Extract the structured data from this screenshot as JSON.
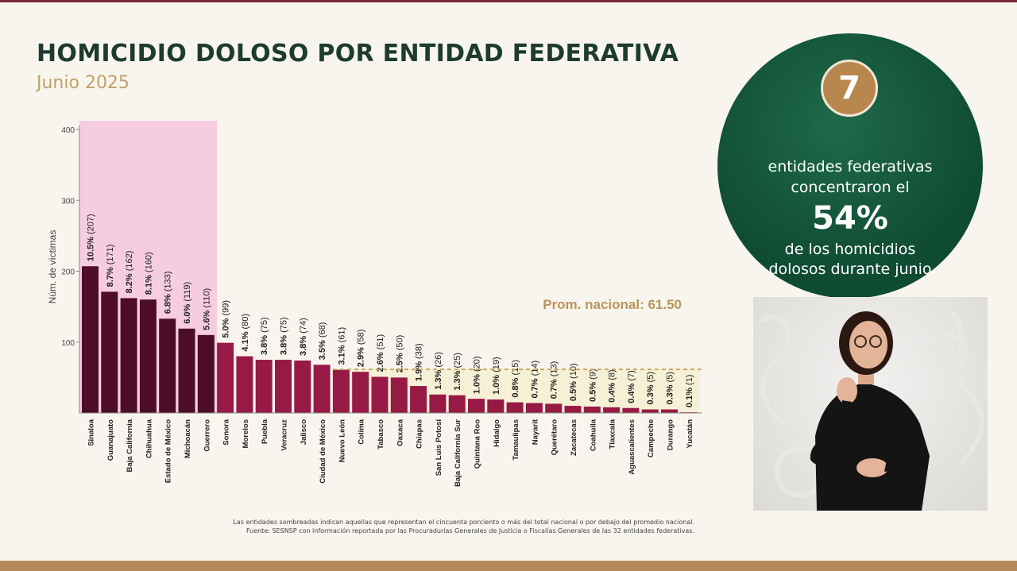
{
  "header": {
    "title": "HOMICIDIO DOLOSO POR ENTIDAD FEDERATIVA",
    "subtitle": "Junio 2025"
  },
  "chart_data": {
    "type": "bar",
    "ylabel": "Núm. de víctimas",
    "ylim": [
      0,
      400
    ],
    "yticks": [
      100,
      200,
      300,
      400
    ],
    "categories": [
      "Sinaloa",
      "Guanajuato",
      "Baja California",
      "Chihuahua",
      "Estado de México",
      "Michoacán",
      "Guerrero",
      "Sonora",
      "Morelos",
      "Puebla",
      "Veracruz",
      "Jalisco",
      "Ciudad de México",
      "Nuevo León",
      "Colima",
      "Tabasco",
      "Oaxaca",
      "Chiapas",
      "San Luis Potosí",
      "Baja California Sur",
      "Quintana Roo",
      "Hidalgo",
      "Tamaulipas",
      "Nayarit",
      "Querétaro",
      "Zacatecas",
      "Coahuila",
      "Tlaxcala",
      "Aguascalientes",
      "Campeche",
      "Durango",
      "Yucatán"
    ],
    "values": [
      207,
      171,
      162,
      160,
      133,
      119,
      110,
      99,
      80,
      75,
      75,
      74,
      68,
      61,
      58,
      51,
      50,
      38,
      26,
      25,
      20,
      19,
      15,
      14,
      13,
      10,
      9,
      8,
      7,
      5,
      5,
      1
    ],
    "percent_labels": [
      "10.5%",
      "8.7%",
      "8.2%",
      "8.1%",
      "6.8%",
      "6.0%",
      "5.6%",
      "5.0%",
      "4.1%",
      "3.8%",
      "3.8%",
      "3.8%",
      "3.5%",
      "3.1%",
      "2.9%",
      "2.6%",
      "2.5%",
      "1.9%",
      "1.3%",
      "1.3%",
      "1.0%",
      "1.0%",
      "0.8%",
      "0.7%",
      "0.7%",
      "0.5%",
      "0.5%",
      "0.4%",
      "0.4%",
      "0.3%",
      "0.3%",
      "0.1%"
    ],
    "count_labels": [
      "(207)",
      "(171)",
      "(162)",
      "(160)",
      "(133)",
      "(119)",
      "(110)",
      "(99)",
      "(80)",
      "(75)",
      "(75)",
      "(74)",
      "(68)",
      "(61)",
      "(58)",
      "(51)",
      "(50)",
      "(38)",
      "(26)",
      "(25)",
      "(20)",
      "(19)",
      "(15)",
      "(14)",
      "(13)",
      "(10)",
      "(9)",
      "(8)",
      "(7)",
      "(5)",
      "(5)",
      "(1)"
    ],
    "highlight_top_count": 7,
    "average_value": 61.5,
    "average_label": "Prom. nacional: 61.50",
    "colors": {
      "top_bar": "#4e0d27",
      "other_bar": "#961a45",
      "top_shade": "#f6cde0",
      "below_avg_shade": "#f6f0d6",
      "avg_line": "#c9a860",
      "avg_label": "#b8955a"
    }
  },
  "footnote": {
    "line1": "Las entidades sombreadas indican aquellas que representan el cincuenta porciento o más del total nacional o por debajo del promedio nacional.",
    "line2": "Fuente: SESNSP con información reportada por las Procuradurías Generales de Justicia o Fiscalías Generales de las 32 entidades federativas."
  },
  "summary": {
    "count": "7",
    "line1": "entidades federativas",
    "line2": "concentraron el",
    "percent": "54%",
    "line3": "de los homicidios",
    "line4": "dolosos durante junio"
  }
}
